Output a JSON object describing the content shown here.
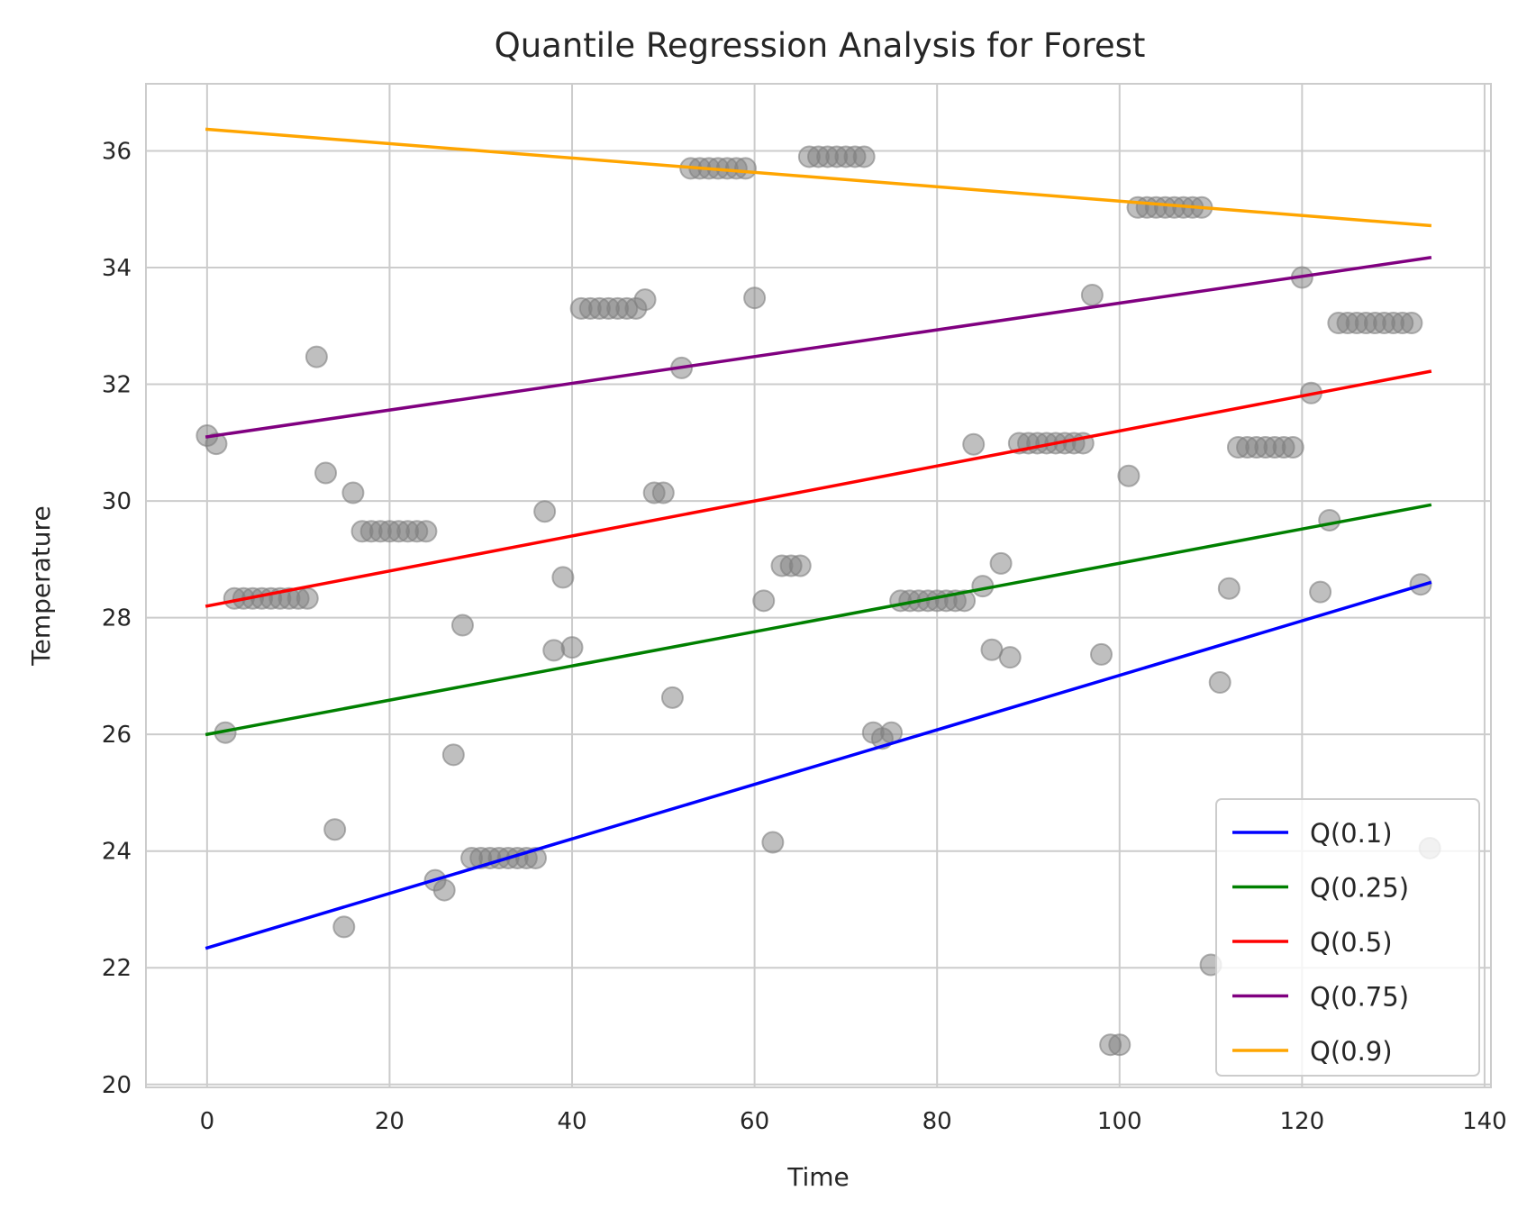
{
  "chart_data": {
    "type": "scatter",
    "title": "Quantile Regression Analysis for Forest",
    "xlabel": "Time",
    "ylabel": "Temperature",
    "xlim": [
      -6.7,
      140.7
    ],
    "ylim": [
      19.95,
      37.15
    ],
    "xticks": [
      0,
      20,
      40,
      60,
      80,
      100,
      120,
      140
    ],
    "yticks": [
      20,
      22,
      24,
      26,
      28,
      30,
      32,
      34,
      36
    ],
    "grid": true,
    "legend_position": "lower-right",
    "scatter": {
      "color": "#808080",
      "points": [
        [
          0,
          31.12
        ],
        [
          1,
          30.98
        ],
        [
          2,
          26.03
        ],
        [
          3,
          28.33
        ],
        [
          4,
          28.33
        ],
        [
          5,
          28.33
        ],
        [
          6,
          28.33
        ],
        [
          7,
          28.33
        ],
        [
          8,
          28.33
        ],
        [
          9,
          28.33
        ],
        [
          10,
          28.33
        ],
        [
          11,
          28.33
        ],
        [
          12,
          32.47
        ],
        [
          13,
          30.48
        ],
        [
          14,
          24.37
        ],
        [
          15,
          22.7
        ],
        [
          16,
          30.14
        ],
        [
          17,
          29.48
        ],
        [
          18,
          29.48
        ],
        [
          19,
          29.48
        ],
        [
          20,
          29.48
        ],
        [
          21,
          29.48
        ],
        [
          22,
          29.48
        ],
        [
          23,
          29.48
        ],
        [
          24,
          29.48
        ],
        [
          25,
          23.5
        ],
        [
          26,
          23.33
        ],
        [
          27,
          25.65
        ],
        [
          28,
          27.87
        ],
        [
          29,
          23.88
        ],
        [
          30,
          23.88
        ],
        [
          31,
          23.88
        ],
        [
          32,
          23.88
        ],
        [
          33,
          23.88
        ],
        [
          34,
          23.88
        ],
        [
          35,
          23.88
        ],
        [
          36,
          23.88
        ],
        [
          37,
          29.82
        ],
        [
          38,
          27.44
        ],
        [
          39,
          28.69
        ],
        [
          40,
          27.49
        ],
        [
          41,
          33.3
        ],
        [
          42,
          33.3
        ],
        [
          43,
          33.3
        ],
        [
          44,
          33.3
        ],
        [
          45,
          33.3
        ],
        [
          46,
          33.3
        ],
        [
          47,
          33.3
        ],
        [
          48,
          33.45
        ],
        [
          49,
          30.14
        ],
        [
          50,
          30.14
        ],
        [
          51,
          26.63
        ],
        [
          52,
          32.28
        ],
        [
          53,
          35.7
        ],
        [
          54,
          35.7
        ],
        [
          55,
          35.7
        ],
        [
          56,
          35.7
        ],
        [
          57,
          35.7
        ],
        [
          58,
          35.7
        ],
        [
          59,
          35.7
        ],
        [
          60,
          33.48
        ],
        [
          61,
          28.29
        ],
        [
          62,
          24.15
        ],
        [
          63,
          28.89
        ],
        [
          64,
          28.89
        ],
        [
          65,
          28.89
        ],
        [
          66,
          35.9
        ],
        [
          67,
          35.9
        ],
        [
          68,
          35.9
        ],
        [
          69,
          35.9
        ],
        [
          70,
          35.9
        ],
        [
          71,
          35.9
        ],
        [
          72,
          35.9
        ],
        [
          73,
          26.03
        ],
        [
          74,
          25.93
        ],
        [
          75,
          26.03
        ],
        [
          76,
          28.29
        ],
        [
          77,
          28.29
        ],
        [
          78,
          28.29
        ],
        [
          79,
          28.29
        ],
        [
          80,
          28.29
        ],
        [
          81,
          28.29
        ],
        [
          82,
          28.29
        ],
        [
          83,
          28.29
        ],
        [
          84,
          30.97
        ],
        [
          85,
          28.54
        ],
        [
          86,
          27.45
        ],
        [
          87,
          28.93
        ],
        [
          88,
          27.32
        ],
        [
          89,
          30.99
        ],
        [
          90,
          30.99
        ],
        [
          91,
          30.99
        ],
        [
          92,
          30.99
        ],
        [
          93,
          30.99
        ],
        [
          94,
          30.99
        ],
        [
          95,
          30.99
        ],
        [
          96,
          30.99
        ],
        [
          97,
          33.53
        ],
        [
          98,
          27.37
        ],
        [
          99,
          20.68
        ],
        [
          100,
          20.68
        ],
        [
          101,
          30.43
        ],
        [
          102,
          35.03
        ],
        [
          103,
          35.03
        ],
        [
          104,
          35.03
        ],
        [
          105,
          35.03
        ],
        [
          106,
          35.03
        ],
        [
          107,
          35.03
        ],
        [
          108,
          35.03
        ],
        [
          109,
          35.03
        ],
        [
          110,
          22.05
        ],
        [
          111,
          26.89
        ],
        [
          112,
          28.5
        ],
        [
          113,
          30.92
        ],
        [
          114,
          30.92
        ],
        [
          115,
          30.92
        ],
        [
          116,
          30.92
        ],
        [
          117,
          30.92
        ],
        [
          118,
          30.92
        ],
        [
          119,
          30.92
        ],
        [
          120,
          33.83
        ],
        [
          121,
          31.85
        ],
        [
          122,
          28.44
        ],
        [
          123,
          29.67
        ],
        [
          124,
          33.05
        ],
        [
          125,
          33.05
        ],
        [
          126,
          33.05
        ],
        [
          127,
          33.05
        ],
        [
          128,
          33.05
        ],
        [
          129,
          33.05
        ],
        [
          130,
          33.05
        ],
        [
          131,
          33.05
        ],
        [
          132,
          33.05
        ],
        [
          133,
          28.57
        ],
        [
          134,
          24.05
        ]
      ]
    },
    "series": [
      {
        "name": "Q(0.1)",
        "color": "#0000ff",
        "x": [
          0,
          134
        ],
        "y": [
          22.34,
          28.6
        ]
      },
      {
        "name": "Q(0.25)",
        "color": "#008000",
        "x": [
          0,
          134
        ],
        "y": [
          26.0,
          29.93
        ]
      },
      {
        "name": "Q(0.5)",
        "color": "#ff0000",
        "x": [
          0,
          134
        ],
        "y": [
          28.2,
          32.22
        ]
      },
      {
        "name": "Q(0.75)",
        "color": "#800080",
        "x": [
          0,
          134
        ],
        "y": [
          31.1,
          34.17
        ]
      },
      {
        "name": "Q(0.9)",
        "color": "#ffa500",
        "x": [
          0,
          134
        ],
        "y": [
          36.37,
          34.72
        ]
      }
    ]
  }
}
